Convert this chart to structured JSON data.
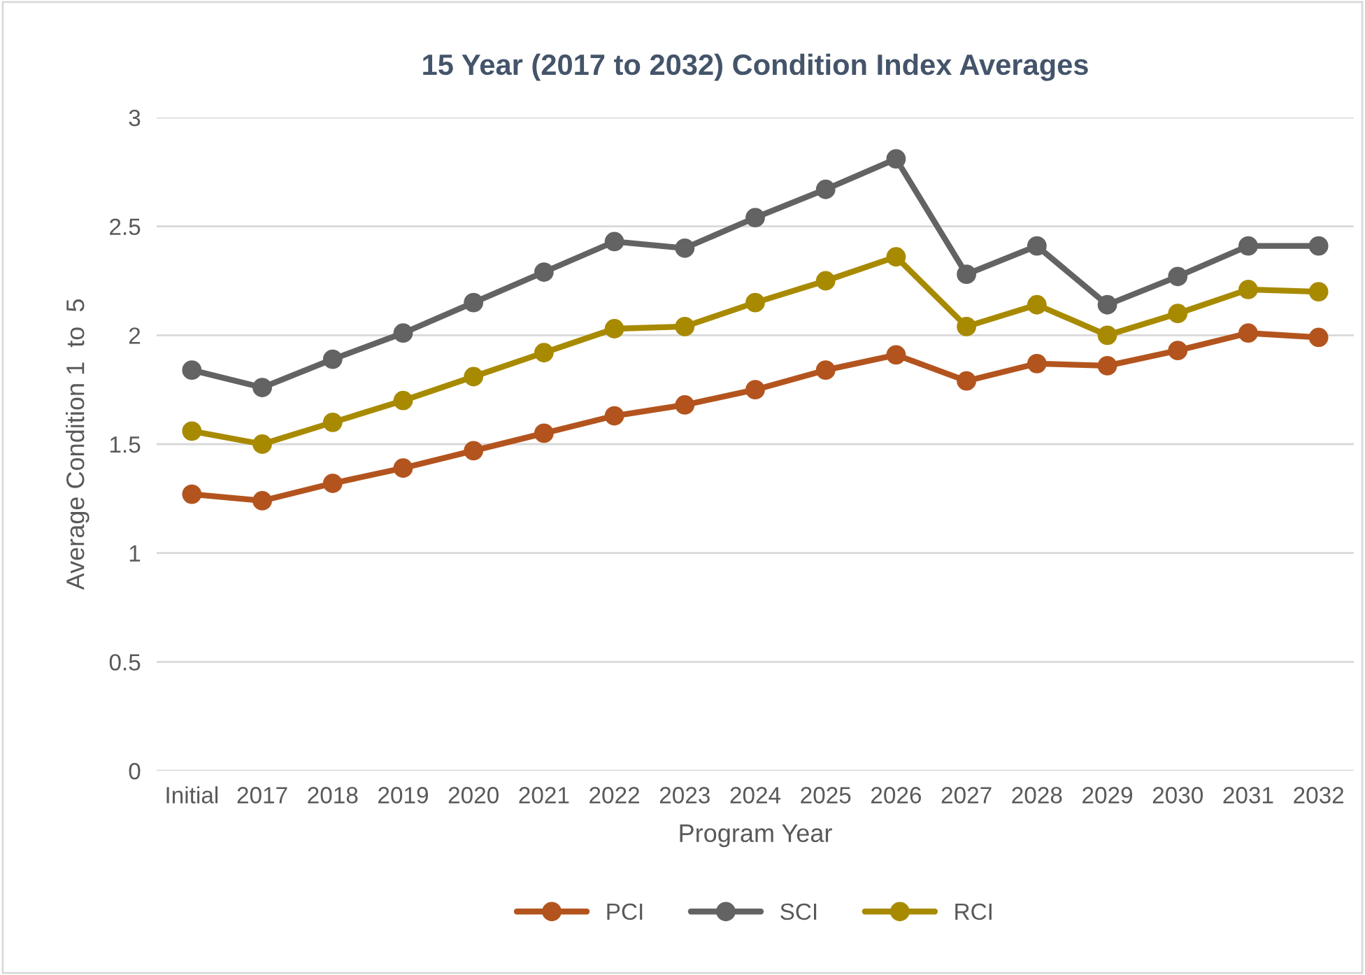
{
  "chart_data": {
    "type": "line",
    "title": "15 Year (2017 to 2032) Condition Index Averages",
    "xlabel": "Program Year",
    "ylabel": "Average Condition 1  to  5",
    "categories": [
      "Initial",
      "2017",
      "2018",
      "2019",
      "2020",
      "2021",
      "2022",
      "2023",
      "2024",
      "2025",
      "2026",
      "2027",
      "2028",
      "2029",
      "2030",
      "2031",
      "2032"
    ],
    "series": [
      {
        "name": "PCI",
        "color": "#b3541e",
        "values": [
          1.27,
          1.24,
          1.32,
          1.39,
          1.47,
          1.55,
          1.63,
          1.68,
          1.75,
          1.84,
          1.91,
          1.79,
          1.87,
          1.86,
          1.93,
          2.01,
          1.99
        ]
      },
      {
        "name": "SCI",
        "color": "#636363",
        "values": [
          1.84,
          1.76,
          1.89,
          2.01,
          2.15,
          2.29,
          2.43,
          2.4,
          2.54,
          2.67,
          2.81,
          2.28,
          2.41,
          2.14,
          2.27,
          2.41,
          2.41
        ]
      },
      {
        "name": "RCI",
        "color": "#a88a00",
        "values": [
          1.56,
          1.5,
          1.6,
          1.7,
          1.81,
          1.92,
          2.03,
          2.04,
          2.15,
          2.25,
          2.36,
          2.04,
          2.14,
          2.0,
          2.1,
          2.21,
          2.2
        ]
      }
    ],
    "ylim": [
      0,
      3
    ],
    "yticks": [
      0,
      0.5,
      1,
      1.5,
      2,
      2.5,
      3
    ],
    "grid": "y",
    "legend": "bottom",
    "marker": "circle",
    "line_style": "solid"
  }
}
